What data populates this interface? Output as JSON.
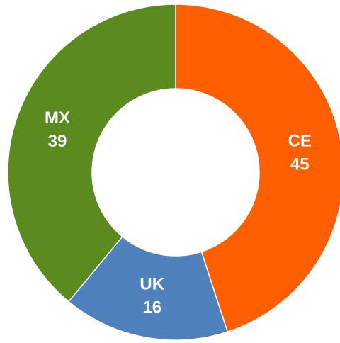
{
  "chart_data": {
    "type": "donut",
    "categories": [
      "CE",
      "UK",
      "MX"
    ],
    "values": [
      45,
      16,
      39
    ],
    "colors": [
      "#ff5f00",
      "#4f81bd",
      "#5b8a1e"
    ]
  }
}
